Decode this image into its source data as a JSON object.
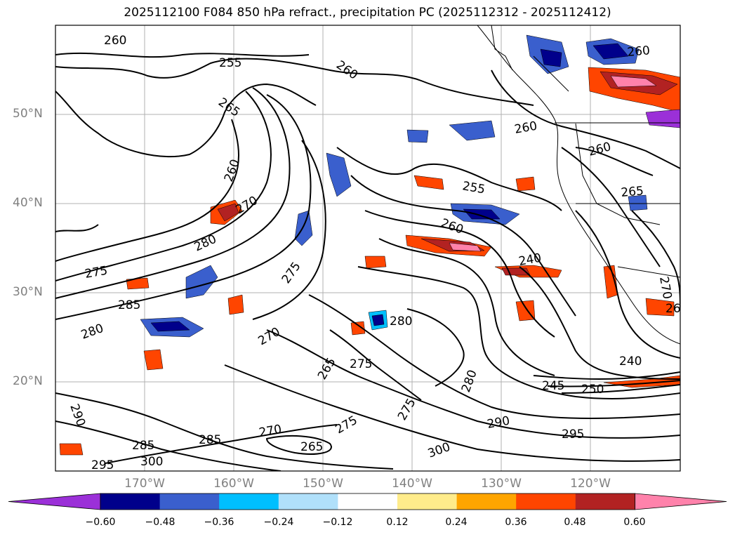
{
  "title": "2025112100 F084 850 hPa refract., precipitation PC (2025112312 - 2025112412)",
  "lat_labels": [
    "50°N",
    "40°N",
    "30°N",
    "20°N"
  ],
  "lon_labels": [
    "170°W",
    "160°W",
    "150°W",
    "140°W",
    "130°W",
    "120°W"
  ],
  "colorbar": {
    "colors": [
      "#9b30d8",
      "#00008b",
      "#3a5fcd",
      "#00bfff",
      "#b0e0fa",
      "#ffffff",
      "#ffec8b",
      "#ffa500",
      "#ff4500",
      "#b22222",
      "#ff82ab"
    ],
    "ticks": [
      "−0.60",
      "−0.48",
      "−0.36",
      "−0.24",
      "−0.12",
      "0.12",
      "0.24",
      "0.36",
      "0.48",
      "0.60"
    ]
  },
  "contour_labels": [
    "260",
    "255",
    "260",
    "265",
    "260",
    "270",
    "280",
    "275",
    "275",
    "285",
    "280",
    "270",
    "275",
    "265",
    "280",
    "270",
    "285",
    "275",
    "265",
    "285",
    "295",
    "300",
    "290",
    "300",
    "275",
    "290",
    "280",
    "295",
    "255",
    "260",
    "260",
    "260",
    "265",
    "240",
    "245",
    "250",
    "240",
    "270",
    "26",
    "260"
  ]
}
